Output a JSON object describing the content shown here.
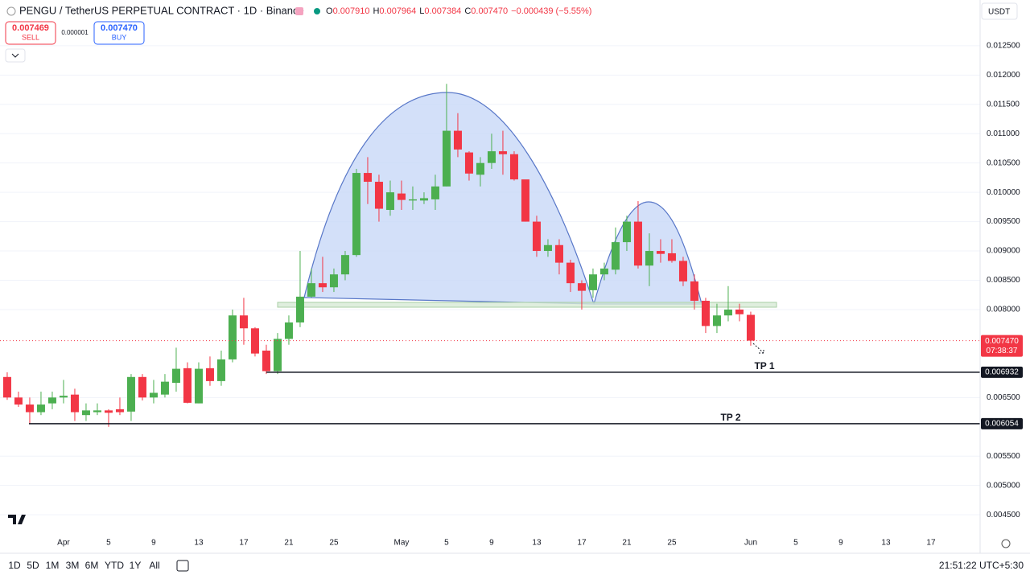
{
  "header": {
    "symbol": "PENGU / TetherUS PERPETUAL CONTRACT · 1D · Binance",
    "open_label": "O",
    "open": "0.007910",
    "high_label": "H",
    "high": "0.007964",
    "low_label": "L",
    "low": "0.007384",
    "close_label": "C",
    "close": "0.007470",
    "change": "−0.000439 (−5.55%)"
  },
  "order_panel": {
    "sell_price": "0.007469",
    "sell_label": "SELL",
    "spread": "0.000001",
    "buy_price": "0.007470",
    "buy_label": "BUY"
  },
  "currency": "USDT",
  "toolbar": {
    "ranges": [
      "1D",
      "5D",
      "1M",
      "3M",
      "6M",
      "YTD",
      "1Y",
      "All"
    ],
    "clock": "21:51:22 UTC+5:30"
  },
  "chart_data": {
    "type": "candlestick",
    "x": [
      -5,
      -4,
      -3,
      -2,
      -1,
      0,
      1,
      2,
      3,
      4,
      5,
      6,
      7,
      8,
      9,
      10,
      11,
      12,
      13,
      14,
      15,
      16,
      17,
      18,
      19,
      20,
      21,
      22,
      23,
      24,
      25,
      26,
      27,
      28,
      29,
      30,
      31,
      32,
      33,
      34,
      35,
      36,
      37,
      38,
      39,
      40,
      41,
      42,
      43,
      44,
      45,
      46,
      47,
      48,
      49,
      50,
      51,
      52,
      53,
      54,
      55,
      56,
      57,
      58,
      59,
      60,
      61
    ],
    "open": [
      0.00685,
      0.0065,
      0.00638,
      0.00625,
      0.0064,
      0.0065,
      0.00655,
      0.0062,
      0.00625,
      0.00628,
      0.0063,
      0.00626,
      0.00685,
      0.0065,
      0.00655,
      0.00675,
      0.007,
      0.0064,
      0.007,
      0.00678,
      0.00715,
      0.0079,
      0.00768,
      0.0073,
      0.00695,
      0.0075,
      0.00778,
      0.00822,
      0.00845,
      0.00838,
      0.0086,
      0.00893,
      0.01033,
      0.01018,
      0.0097,
      0.00998,
      0.00986,
      0.00986,
      0.00988,
      0.0101,
      0.01105,
      0.01068,
      0.0103,
      0.0105,
      0.0107,
      0.01065,
      0.01022,
      0.0095,
      0.009,
      0.0091,
      0.0088,
      0.00845,
      0.00833,
      0.0086,
      0.00868,
      0.00915,
      0.0095,
      0.00875,
      0.009,
      0.00896,
      0.00883,
      0.00848,
      0.00815,
      0.00772,
      0.0079,
      0.008,
      0.00791
    ],
    "high": [
      0.00693,
      0.0066,
      0.0065,
      0.0066,
      0.0066,
      0.0068,
      0.00665,
      0.0064,
      0.0064,
      0.0063,
      0.0065,
      0.0069,
      0.0069,
      0.0068,
      0.0069,
      0.00735,
      0.0071,
      0.0071,
      0.0072,
      0.0073,
      0.008,
      0.0082,
      0.0077,
      0.0074,
      0.0076,
      0.0079,
      0.009,
      0.0087,
      0.0089,
      0.0087,
      0.009,
      0.0104,
      0.0106,
      0.0103,
      0.0102,
      0.0102,
      0.0101,
      0.01,
      0.0103,
      0.01185,
      0.01135,
      0.0107,
      0.0106,
      0.011,
      0.01105,
      0.0107,
      0.0102,
      0.0096,
      0.0092,
      0.0092,
      0.00885,
      0.0085,
      0.0087,
      0.0088,
      0.0094,
      0.0096,
      0.00985,
      0.0093,
      0.0092,
      0.0092,
      0.0089,
      0.0086,
      0.0082,
      0.0081,
      0.0084,
      0.0081,
      0.007964
    ],
    "low": [
      0.00646,
      0.00634,
      0.00605,
      0.0062,
      0.0063,
      0.0064,
      0.0061,
      0.0061,
      0.0062,
      0.006,
      0.0062,
      0.0061,
      0.00645,
      0.0064,
      0.0065,
      0.0066,
      0.0064,
      0.0064,
      0.0067,
      0.0067,
      0.0071,
      0.0074,
      0.0072,
      0.0069,
      0.0069,
      0.0074,
      0.0077,
      0.0082,
      0.0083,
      0.0083,
      0.0085,
      0.0089,
      0.0098,
      0.0095,
      0.0096,
      0.0097,
      0.0097,
      0.0098,
      0.0097,
      0.0101,
      0.0106,
      0.0102,
      0.0101,
      0.0104,
      0.0103,
      0.0102,
      0.0095,
      0.0089,
      0.0089,
      0.0086,
      0.0083,
      0.008,
      0.0082,
      0.0085,
      0.0086,
      0.009,
      0.0087,
      0.0084,
      0.0088,
      0.0088,
      0.0084,
      0.008,
      0.0076,
      0.0076,
      0.0078,
      0.0078,
      0.007384
    ],
    "close": [
      0.0065,
      0.00638,
      0.00625,
      0.00638,
      0.0065,
      0.00653,
      0.00625,
      0.00628,
      0.00628,
      0.00624,
      0.00625,
      0.00685,
      0.0065,
      0.00658,
      0.00677,
      0.00699,
      0.00641,
      0.00699,
      0.00678,
      0.00715,
      0.0079,
      0.00768,
      0.00725,
      0.00695,
      0.0075,
      0.00778,
      0.00822,
      0.00845,
      0.00838,
      0.0086,
      0.00893,
      0.01033,
      0.01018,
      0.00972,
      0.01,
      0.00987,
      0.00988,
      0.0099,
      0.0101,
      0.01105,
      0.01073,
      0.01032,
      0.0105,
      0.0107,
      0.01065,
      0.01022,
      0.0095,
      0.009,
      0.0091,
      0.0088,
      0.00845,
      0.00832,
      0.0086,
      0.0087,
      0.00915,
      0.0095,
      0.00875,
      0.009,
      0.00895,
      0.00883,
      0.00848,
      0.00815,
      0.00772,
      0.0079,
      0.008,
      0.00792,
      0.00747
    ],
    "up_color": "#4caf50",
    "down_color": "#f23645",
    "xlim": [
      -5.64,
      81.36
    ],
    "ylim": [
      0.0042,
      0.01328
    ],
    "xticks": [
      {
        "value": 0,
        "label": "Apr"
      },
      {
        "value": 4,
        "label": "5"
      },
      {
        "value": 8,
        "label": "9"
      },
      {
        "value": 12,
        "label": "13"
      },
      {
        "value": 16,
        "label": "17"
      },
      {
        "value": 20,
        "label": "21"
      },
      {
        "value": 24,
        "label": "25"
      },
      {
        "value": 30,
        "label": "May"
      },
      {
        "value": 34,
        "label": "5"
      },
      {
        "value": 38,
        "label": "9"
      },
      {
        "value": 42,
        "label": "13"
      },
      {
        "value": 46,
        "label": "17"
      },
      {
        "value": 50,
        "label": "21"
      },
      {
        "value": 54,
        "label": "25"
      },
      {
        "value": 61,
        "label": "Jun"
      },
      {
        "value": 65,
        "label": "5"
      },
      {
        "value": 69,
        "label": "9"
      },
      {
        "value": 73,
        "label": "13"
      },
      {
        "value": 77,
        "label": "17"
      }
    ],
    "yticks": [
      {
        "value": 0.0125,
        "label": "0.012500"
      },
      {
        "value": 0.012,
        "label": "0.012000"
      },
      {
        "value": 0.0115,
        "label": "0.011500"
      },
      {
        "value": 0.011,
        "label": "0.011000"
      },
      {
        "value": 0.0105,
        "label": "0.010500"
      },
      {
        "value": 0.01,
        "label": "0.010000"
      },
      {
        "value": 0.0095,
        "label": "0.009500"
      },
      {
        "value": 0.009,
        "label": "0.009000"
      },
      {
        "value": 0.0085,
        "label": "0.008500"
      },
      {
        "value": 0.008,
        "label": "0.008000"
      },
      {
        "value": 0.0065,
        "label": "0.006500"
      },
      {
        "value": 0.0055,
        "label": "0.005500"
      },
      {
        "value": 0.005,
        "label": "0.005000"
      },
      {
        "value": 0.0045,
        "label": "0.004500"
      }
    ],
    "grid": true,
    "last_price": {
      "value": 0.00747,
      "label": "0.007470"
    },
    "countdown": "07:38:37",
    "levels": [
      {
        "name": "TP 1",
        "value": 0.006932
      },
      {
        "name": "TP 2",
        "value": 0.006054
      }
    ]
  }
}
